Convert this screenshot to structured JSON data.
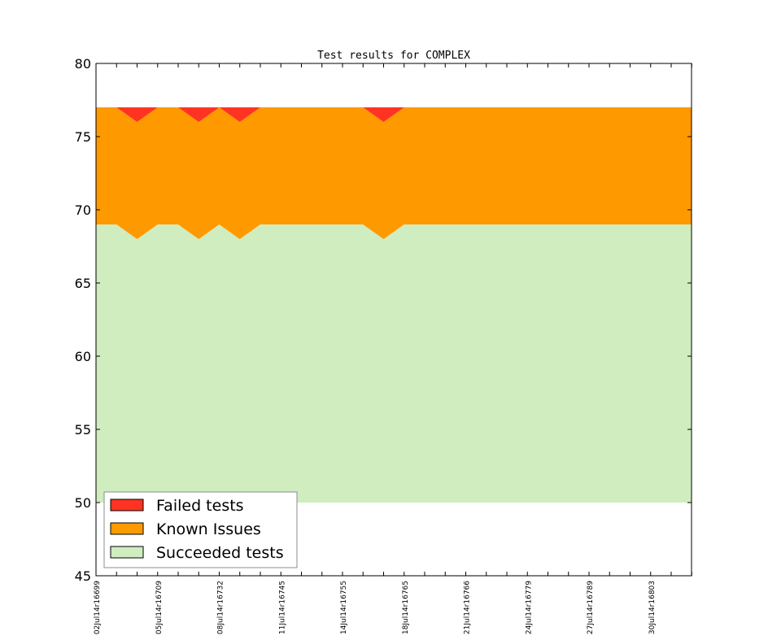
{
  "chart_data": {
    "type": "area",
    "title": "Test results for COMPLEX",
    "xlabel": "",
    "ylabel": "",
    "ylim": [
      45,
      80
    ],
    "yticks": [
      45,
      50,
      55,
      60,
      65,
      70,
      75,
      80
    ],
    "x_tick_labels": [
      "02Jul14r16699",
      "05Jul14r16709",
      "08Jul14r16732",
      "11Jul14r16745",
      "14Jul14r16755",
      "18Jul14r16765",
      "21Jul14r16766",
      "24Jul14r16779",
      "27Jul14r16789",
      "30Jul14r16803"
    ],
    "series": [
      {
        "name": "Succeeded tests",
        "color": "#cfedbf",
        "lower": [
          50,
          50,
          50,
          50,
          50,
          50,
          50,
          50,
          50,
          50,
          50,
          50,
          50,
          50,
          50,
          50,
          50,
          50,
          50,
          50,
          50,
          50,
          50,
          50,
          50,
          50,
          50,
          50,
          50,
          50
        ],
        "upper": [
          69,
          69,
          68,
          69,
          69,
          68,
          69,
          68,
          69,
          69,
          69,
          69,
          69,
          69,
          68,
          69,
          69,
          69,
          69,
          69,
          69,
          69,
          69,
          69,
          69,
          69,
          69,
          69,
          69,
          69
        ]
      },
      {
        "name": "Known Issues",
        "color": "#ff9900",
        "lower": [
          69,
          69,
          68,
          69,
          69,
          68,
          69,
          68,
          69,
          69,
          69,
          69,
          69,
          69,
          68,
          69,
          69,
          69,
          69,
          69,
          69,
          69,
          69,
          69,
          69,
          69,
          69,
          69,
          69,
          69
        ],
        "upper": [
          77,
          77,
          76,
          77,
          77,
          76,
          77,
          76,
          77,
          77,
          77,
          77,
          77,
          77,
          76,
          77,
          77,
          77,
          77,
          77,
          77,
          77,
          77,
          77,
          77,
          77,
          77,
          77,
          77,
          77
        ]
      },
      {
        "name": "Failed tests",
        "color": "#ff3322",
        "lower": [
          77,
          77,
          76,
          77,
          77,
          76,
          77,
          76,
          77,
          77,
          77,
          77,
          77,
          77,
          76,
          77,
          77,
          77,
          77,
          77,
          77,
          77,
          77,
          77,
          77,
          77,
          77,
          77,
          77,
          77
        ],
        "upper": [
          77,
          77,
          77,
          77,
          77,
          77,
          77,
          77,
          77,
          77,
          77,
          77,
          77,
          77,
          77,
          77,
          77,
          77,
          77,
          77,
          77,
          77,
          77,
          77,
          77,
          77,
          77,
          77,
          77,
          77
        ]
      }
    ],
    "grid": false,
    "legend_position": "lower-left"
  }
}
